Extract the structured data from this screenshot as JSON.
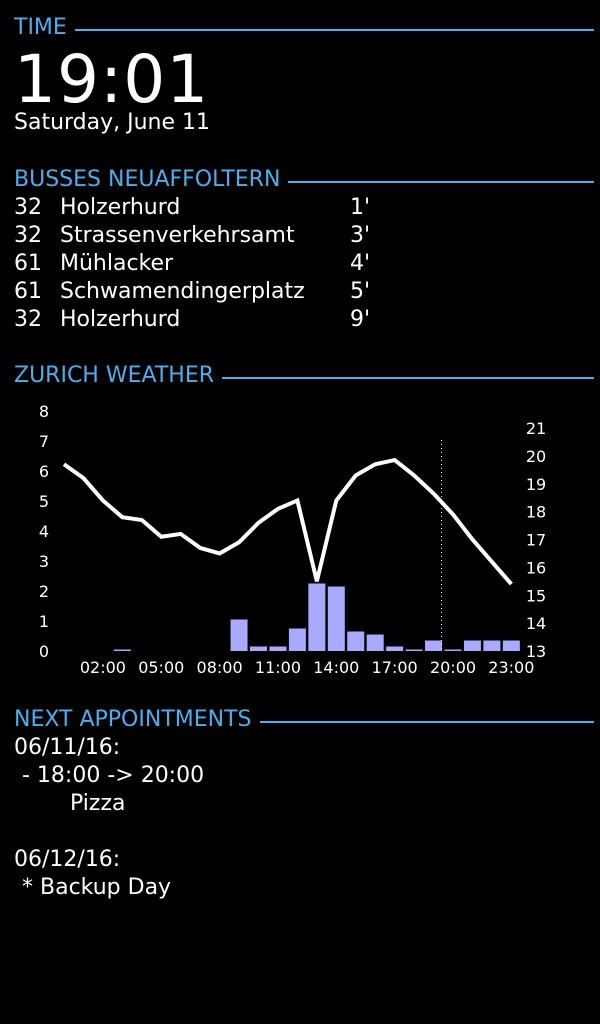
{
  "colors": {
    "accent": "#4aaff0",
    "background": "#000000",
    "text": "#ffffff",
    "bar": "#a9a9ff",
    "line": "#ffffff"
  },
  "time_section": {
    "header": "TIME",
    "clock": "19:01",
    "date": "Saturday, June 11"
  },
  "bus_section": {
    "header": "BUSSES NEUAFFOLTERN",
    "departures": [
      {
        "line": "32",
        "destination": "Holzerhurd",
        "eta": "1'"
      },
      {
        "line": "32",
        "destination": "Strassenverkehrsamt",
        "eta": "3'"
      },
      {
        "line": "61",
        "destination": "Mühlacker",
        "eta": "4'"
      },
      {
        "line": "61",
        "destination": "Schwamendingerplatz",
        "eta": "5'"
      },
      {
        "line": "32",
        "destination": "Holzerhurd",
        "eta": "9'"
      }
    ]
  },
  "weather_section": {
    "header": "ZURICH WEATHER"
  },
  "chart_data": {
    "type": "bar+line",
    "title": "",
    "x_tick_labels": [
      "02:00",
      "05:00",
      "08:00",
      "11:00",
      "14:00",
      "17:00",
      "20:00",
      "23:00"
    ],
    "left_axis": {
      "label": "",
      "ticks": [
        0,
        1,
        2,
        3,
        4,
        5,
        6,
        7,
        8
      ],
      "ylim": [
        0,
        8
      ]
    },
    "right_axis": {
      "label": "",
      "ticks": [
        13,
        14,
        15,
        16,
        17,
        18,
        19,
        20,
        21
      ],
      "ylim": [
        13,
        21.6
      ]
    },
    "hours": [
      0,
      1,
      2,
      3,
      4,
      5,
      6,
      7,
      8,
      9,
      10,
      11,
      12,
      13,
      14,
      15,
      16,
      17,
      18,
      19,
      20,
      21,
      22,
      23
    ],
    "series": [
      {
        "kind": "bar",
        "axis": "left",
        "values": [
          0,
          0,
          0,
          0.05,
          0,
          0,
          0,
          0,
          0,
          1.05,
          0.15,
          0.15,
          0.75,
          2.25,
          2.15,
          0.65,
          0.55,
          0.15,
          0.05,
          0.35,
          0.05,
          0.35,
          0.35,
          0.35
        ]
      },
      {
        "kind": "line",
        "axis": "right",
        "values": [
          19.7,
          19.2,
          18.4,
          17.8,
          17.7,
          17.1,
          17.2,
          16.7,
          16.5,
          16.9,
          17.6,
          18.1,
          18.4,
          15.5,
          18.4,
          19.3,
          19.7,
          19.85,
          19.3,
          18.65,
          17.9,
          17.0,
          16.2,
          15.4
        ]
      }
    ],
    "current_time_marker_hour": 19,
    "grid": false,
    "legend": "none"
  },
  "appointments_section": {
    "header": "NEXT APPOINTMENTS",
    "days": [
      {
        "date": "06/11/16:",
        "time_line": "- 18:00 -> 20:00",
        "title": "Pizza"
      },
      {
        "date": "06/12/16:",
        "time_line": "* Backup Day"
      }
    ]
  }
}
